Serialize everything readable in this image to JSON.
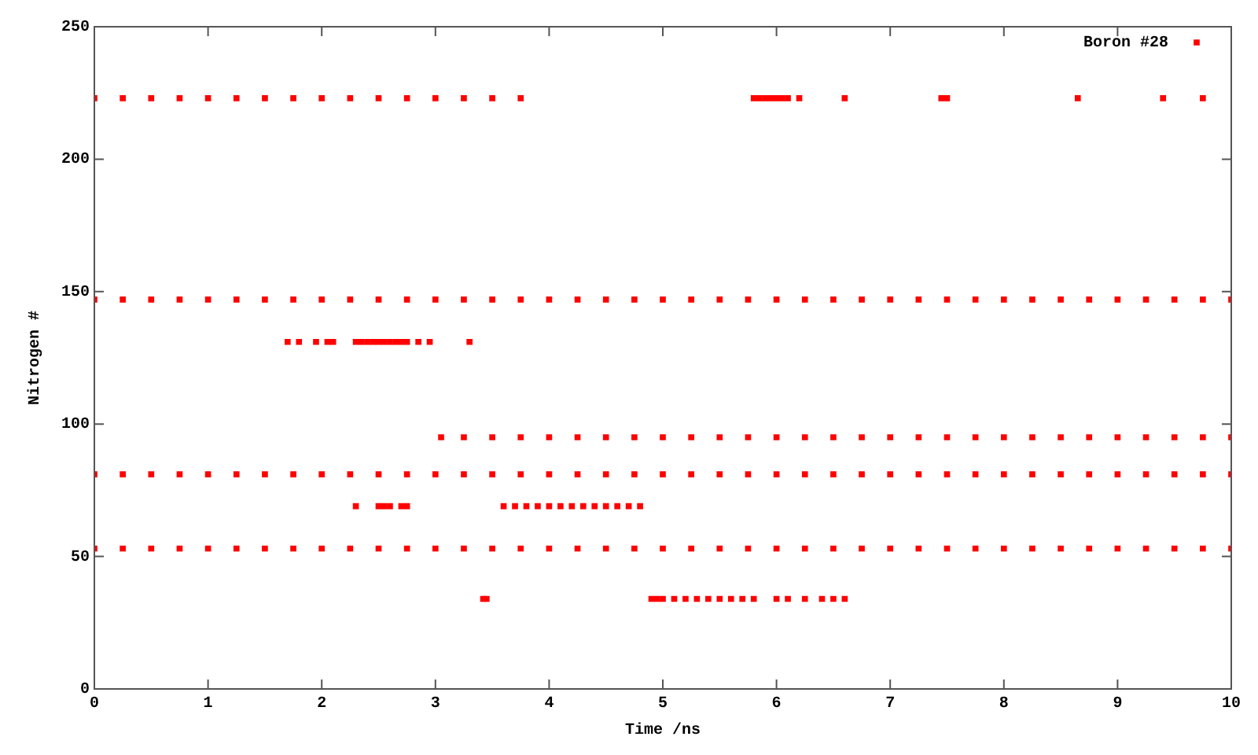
{
  "chart_data": {
    "type": "scatter",
    "xlabel": "Time /ns",
    "ylabel": "Nitrogen #",
    "xlim": [
      0,
      10
    ],
    "xticks": [
      0,
      1,
      2,
      3,
      4,
      5,
      6,
      7,
      8,
      9,
      10
    ],
    "ylim": [
      0,
      250
    ],
    "yticks": [
      0,
      50,
      100,
      150,
      200,
      250
    ],
    "grid": false,
    "legend": "top right",
    "marker": "square",
    "series": [
      {
        "name": "Boron #28",
        "color": "#ff0000",
        "x": [
          0,
          0.25,
          0.5,
          0.75,
          1,
          1.25,
          1.5,
          1.75,
          2,
          2.25,
          2.5,
          2.75,
          3,
          3.25,
          3.5,
          3.75,
          5.8,
          5.85,
          5.9,
          5.95,
          6.0,
          6.05,
          6.1,
          6.2,
          6.6,
          7.45,
          7.5,
          8.65,
          9.4,
          9.75,
          0,
          0.25,
          0.5,
          0.75,
          1,
          1.25,
          1.5,
          1.75,
          2,
          2.25,
          2.5,
          2.75,
          3,
          3.25,
          3.5,
          3.75,
          4,
          4.25,
          4.5,
          4.75,
          5,
          5.25,
          5.5,
          5.75,
          6,
          6.25,
          6.5,
          6.75,
          7,
          7.25,
          7.5,
          7.75,
          8,
          8.25,
          8.5,
          8.75,
          9,
          9.25,
          9.5,
          9.75,
          10,
          1.7,
          1.8,
          1.95,
          2.05,
          2.1,
          2.3,
          2.35,
          2.4,
          2.45,
          2.5,
          2.55,
          2.6,
          2.65,
          2.7,
          2.75,
          2.85,
          2.95,
          3.3,
          3.05,
          3.25,
          3.5,
          3.75,
          4,
          4.25,
          4.5,
          4.75,
          5,
          5.25,
          5.5,
          5.75,
          6,
          6.25,
          6.5,
          6.75,
          7,
          7.25,
          7.5,
          7.75,
          8,
          8.25,
          8.5,
          8.75,
          9,
          9.25,
          9.5,
          9.75,
          10,
          0,
          0.25,
          0.5,
          0.75,
          1,
          1.25,
          1.5,
          1.75,
          2,
          2.25,
          2.5,
          2.75,
          3,
          3.25,
          3.5,
          3.75,
          4,
          4.25,
          4.5,
          4.75,
          5,
          5.25,
          5.5,
          5.75,
          6,
          6.25,
          6.5,
          6.75,
          7,
          7.25,
          7.5,
          7.75,
          8,
          8.25,
          8.5,
          8.75,
          9,
          9.25,
          9.5,
          9.75,
          10,
          2.3,
          2.5,
          2.55,
          2.6,
          2.7,
          2.75,
          3.6,
          3.7,
          3.8,
          3.9,
          4.0,
          4.1,
          4.2,
          4.3,
          4.4,
          4.5,
          4.6,
          4.7,
          4.8,
          0,
          0.25,
          0.5,
          0.75,
          1,
          1.25,
          1.5,
          1.75,
          2,
          2.25,
          2.5,
          2.75,
          3,
          3.25,
          3.5,
          3.75,
          4,
          4.25,
          4.5,
          4.75,
          5,
          5.25,
          5.5,
          5.75,
          6,
          6.25,
          6.5,
          6.75,
          7,
          7.25,
          7.5,
          7.75,
          8,
          8.25,
          8.5,
          8.75,
          9,
          9.25,
          9.5,
          9.75,
          10,
          3.42,
          3.45,
          4.9,
          4.95,
          5.0,
          5.1,
          5.2,
          5.3,
          5.4,
          5.5,
          5.6,
          5.7,
          5.8,
          6.0,
          6.1,
          6.25,
          6.4,
          6.5,
          6.6
        ],
        "values": [
          223,
          223,
          223,
          223,
          223,
          223,
          223,
          223,
          223,
          223,
          223,
          223,
          223,
          223,
          223,
          223,
          223,
          223,
          223,
          223,
          223,
          223,
          223,
          223,
          223,
          223,
          223,
          223,
          223,
          223,
          147,
          147,
          147,
          147,
          147,
          147,
          147,
          147,
          147,
          147,
          147,
          147,
          147,
          147,
          147,
          147,
          147,
          147,
          147,
          147,
          147,
          147,
          147,
          147,
          147,
          147,
          147,
          147,
          147,
          147,
          147,
          147,
          147,
          147,
          147,
          147,
          147,
          147,
          147,
          147,
          147,
          131,
          131,
          131,
          131,
          131,
          131,
          131,
          131,
          131,
          131,
          131,
          131,
          131,
          131,
          131,
          131,
          131,
          131,
          95,
          95,
          95,
          95,
          95,
          95,
          95,
          95,
          95,
          95,
          95,
          95,
          95,
          95,
          95,
          95,
          95,
          95,
          95,
          95,
          95,
          95,
          95,
          95,
          95,
          95,
          95,
          95,
          95,
          81,
          81,
          81,
          81,
          81,
          81,
          81,
          81,
          81,
          81,
          81,
          81,
          81,
          81,
          81,
          81,
          81,
          81,
          81,
          81,
          81,
          81,
          81,
          81,
          81,
          81,
          81,
          81,
          81,
          81,
          81,
          81,
          81,
          81,
          81,
          81,
          81,
          81,
          81,
          81,
          81,
          69,
          69,
          69,
          69,
          69,
          69,
          69,
          69,
          69,
          69,
          69,
          69,
          69,
          69,
          69,
          69,
          69,
          69,
          69,
          53,
          53,
          53,
          53,
          53,
          53,
          53,
          53,
          53,
          53,
          53,
          53,
          53,
          53,
          53,
          53,
          53,
          53,
          53,
          53,
          53,
          53,
          53,
          53,
          53,
          53,
          53,
          53,
          53,
          53,
          53,
          53,
          53,
          53,
          53,
          53,
          53,
          53,
          53,
          53,
          53,
          34,
          34,
          34,
          34,
          34,
          34,
          34,
          34,
          34,
          34,
          34,
          34,
          34,
          34,
          34,
          34,
          34,
          34,
          34
        ]
      }
    ]
  }
}
